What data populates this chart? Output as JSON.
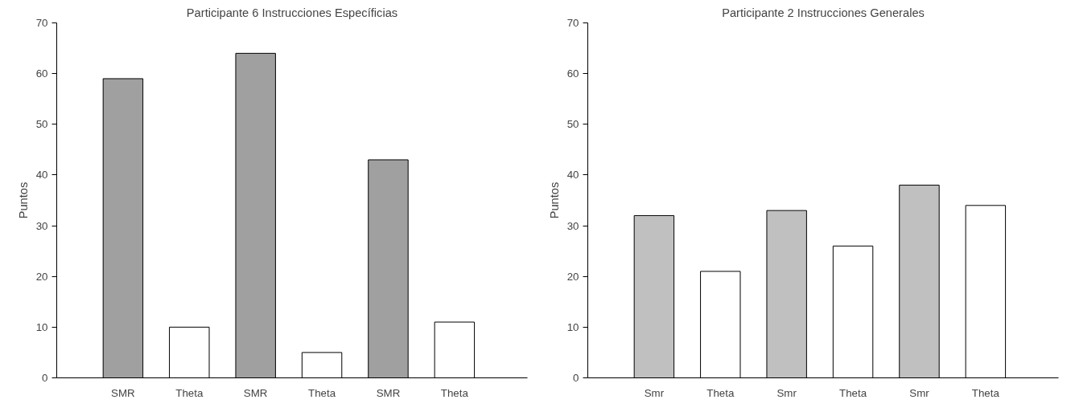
{
  "chart_data": [
    {
      "type": "bar",
      "title": "Participante 6 Instrucciones Específicias",
      "ylabel": "Puntos",
      "categories": [
        "SMR",
        "Theta",
        "SMR",
        "Theta",
        "SMR",
        "Theta"
      ],
      "values": [
        59,
        10,
        64,
        5,
        43,
        11
      ],
      "colors": [
        "#a0a0a0",
        "#ffffff",
        "#a0a0a0",
        "#ffffff",
        "#a0a0a0",
        "#ffffff"
      ],
      "ylim": [
        0,
        70
      ],
      "yticks": [
        0,
        10,
        20,
        30,
        40,
        50,
        60,
        70
      ],
      "grid": false
    },
    {
      "type": "bar",
      "title": "Participante 2 Instrucciones Generales",
      "ylabel": "Puntos",
      "categories": [
        "Smr",
        "Theta",
        "Smr",
        "Theta",
        "Smr",
        "Theta"
      ],
      "values": [
        32,
        21,
        33,
        26,
        38,
        34
      ],
      "colors": [
        "#c0c0c0",
        "#ffffff",
        "#c0c0c0",
        "#ffffff",
        "#c0c0c0",
        "#ffffff"
      ],
      "ylim": [
        0,
        70
      ],
      "yticks": [
        0,
        10,
        20,
        30,
        40,
        50,
        60,
        70
      ],
      "grid": false
    }
  ]
}
